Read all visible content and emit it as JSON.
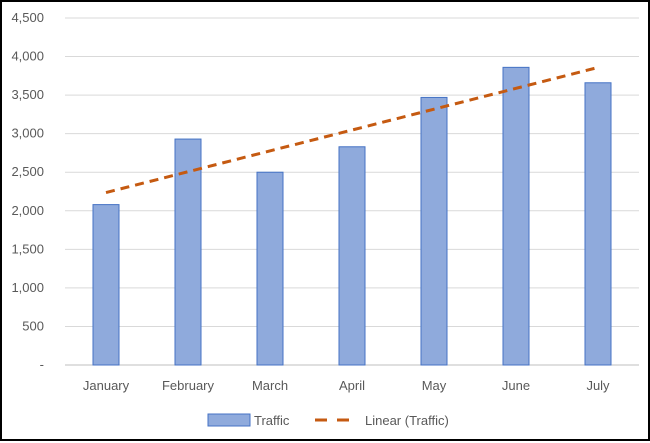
{
  "chart_data": {
    "type": "bar",
    "title": "",
    "xlabel": "",
    "ylabel": "",
    "categories": [
      "January",
      "February",
      "March",
      "April",
      "May",
      "June",
      "July"
    ],
    "series": [
      {
        "name": "Traffic",
        "type": "bar",
        "color": "#8FAADC",
        "border_color": "#4472C4",
        "values": [
          2080,
          2930,
          2500,
          2830,
          3470,
          3860,
          3660
        ]
      },
      {
        "name": "Linear (Traffic)",
        "type": "trendline-linear-dashed",
        "color": "#C55A11"
      }
    ],
    "ylim": [
      0,
      4500
    ],
    "yticks": [
      0,
      500,
      1000,
      1500,
      2000,
      2500,
      3000,
      3500,
      4000,
      4500
    ],
    "ytick_labels": [
      "-",
      "500",
      "1,000",
      "1,500",
      "2,000",
      "2,500",
      "3,000",
      "3,500",
      "4,000",
      "4,500"
    ],
    "grid": true,
    "legend_position": "bottom"
  }
}
